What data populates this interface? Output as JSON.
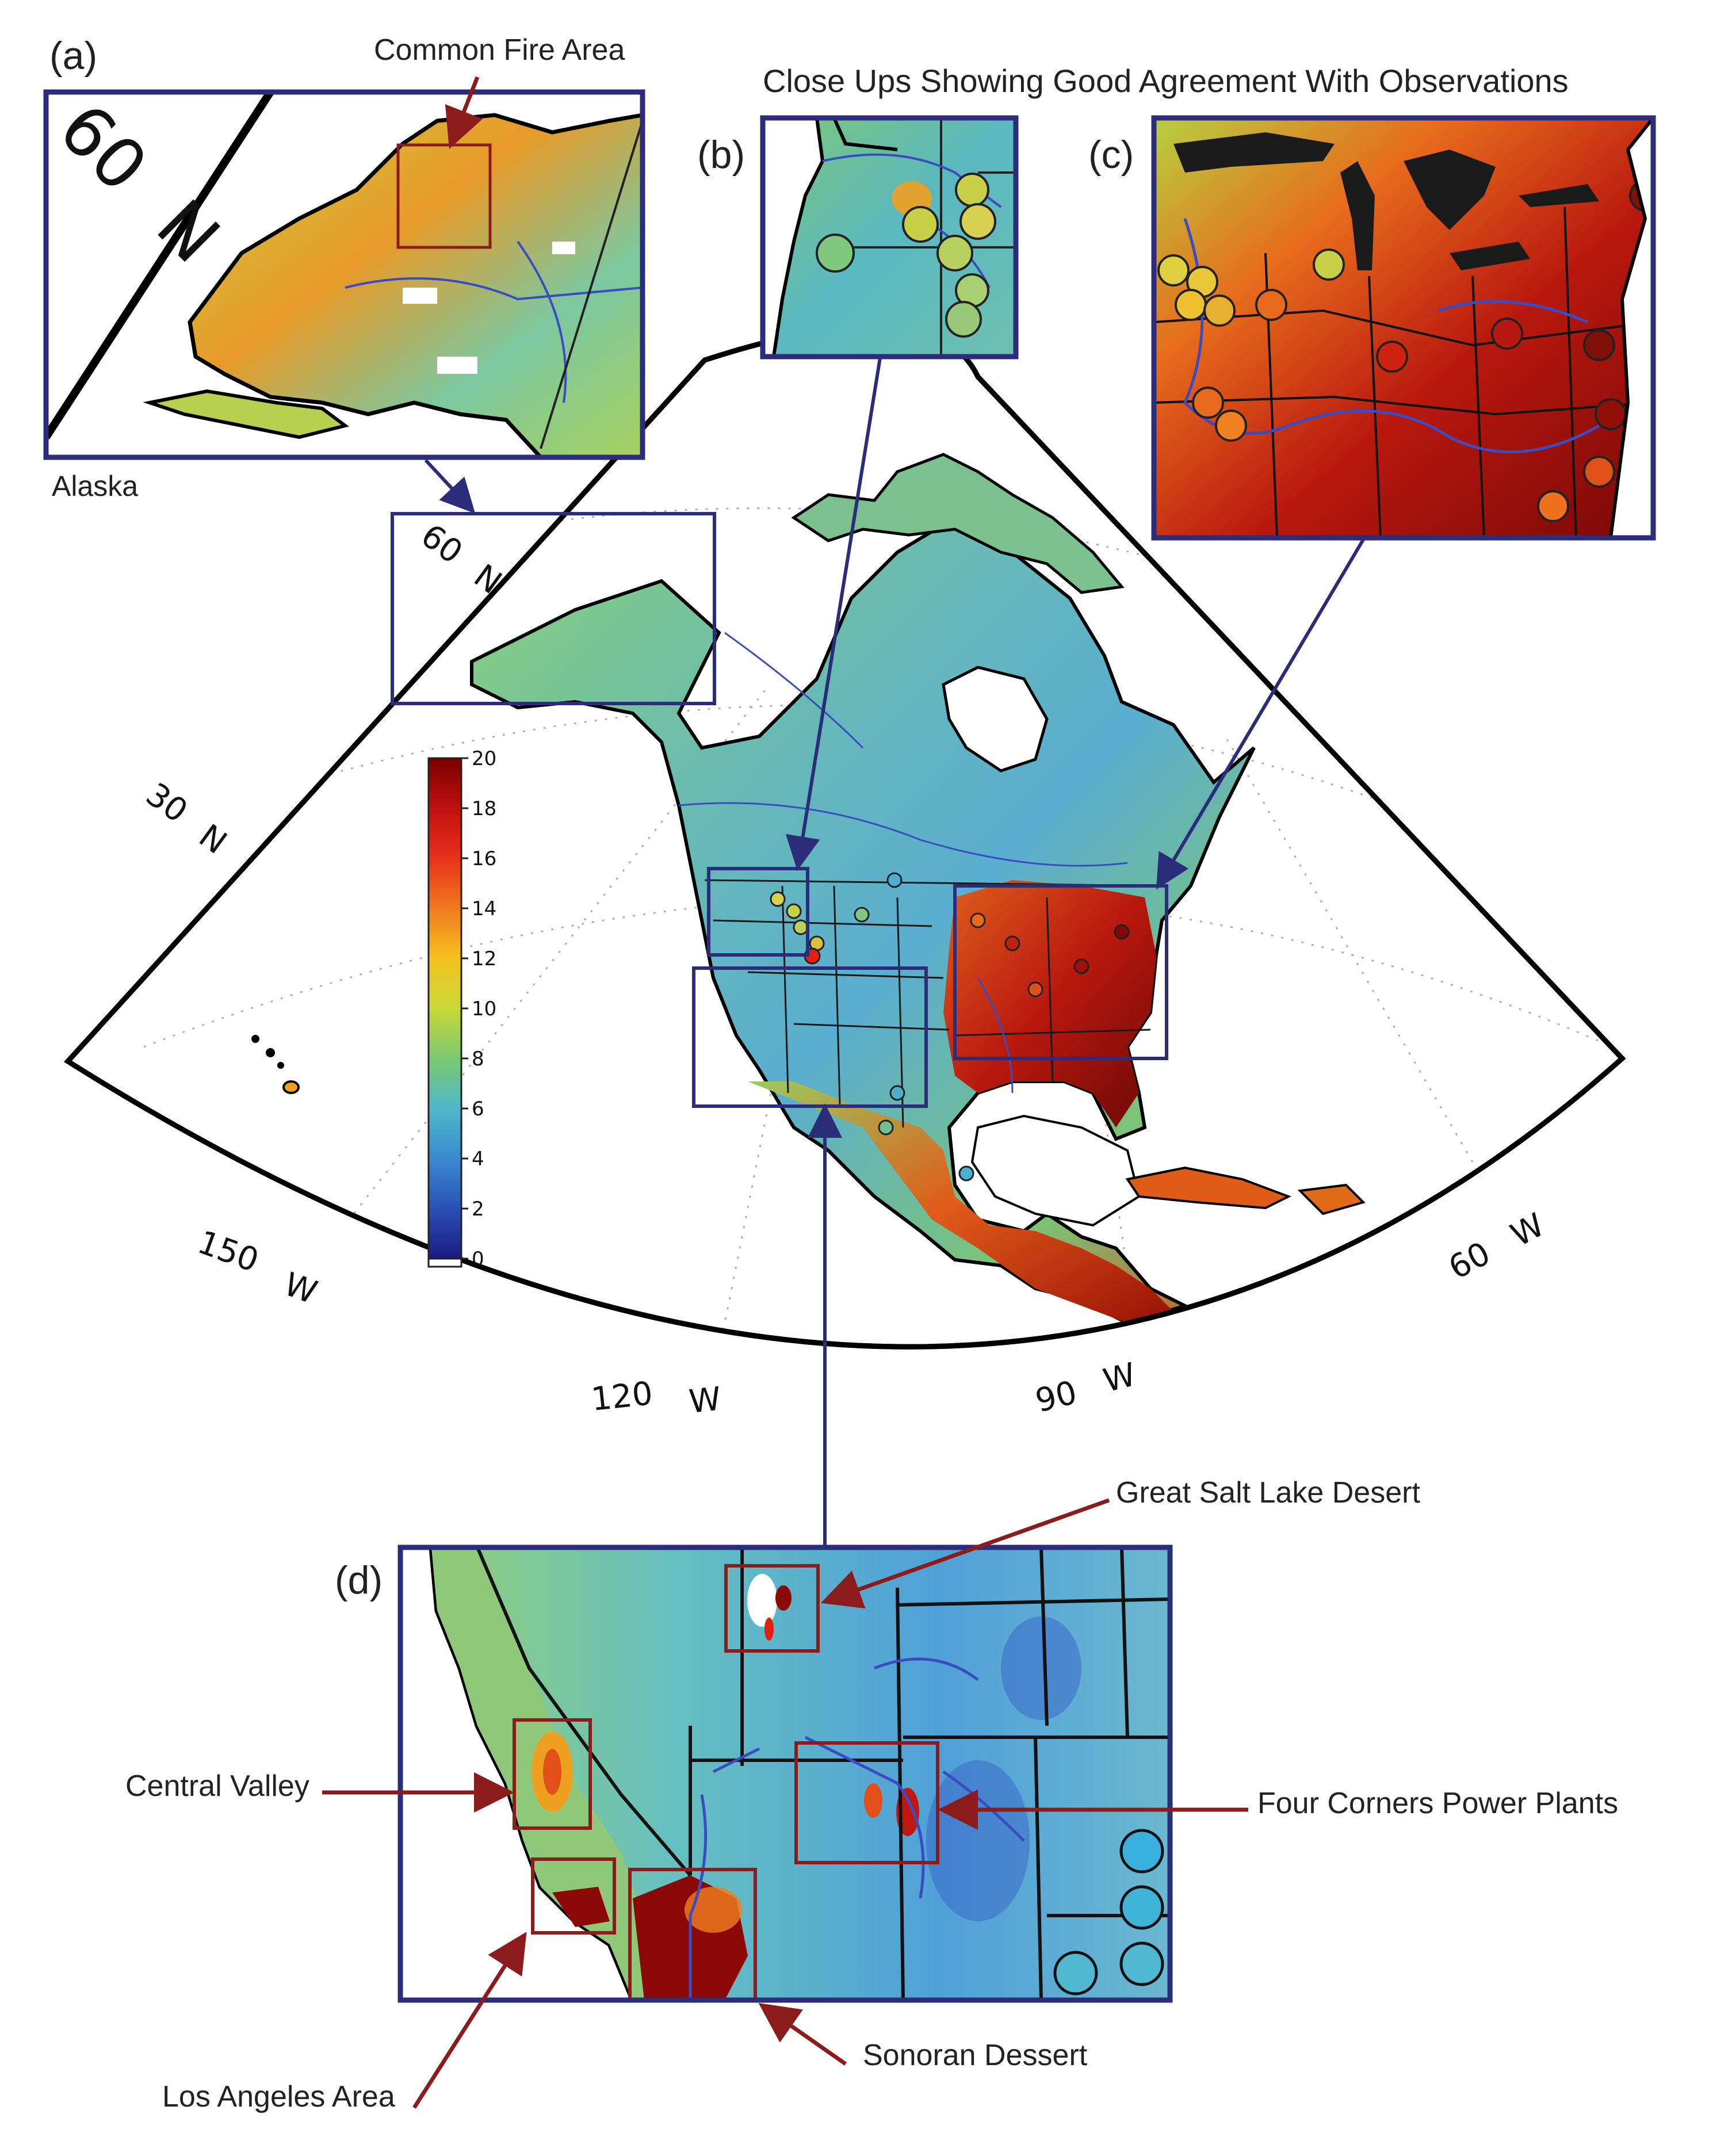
{
  "labels": {
    "panel_a": "(a)",
    "panel_b": "(b)",
    "panel_c": "(c)",
    "panel_d": "(d)",
    "common_fire_area": "Common Fire Area",
    "close_ups_title": "Close Ups Showing Good Agreement With Observations",
    "alaska": "Alaska",
    "great_salt_lake_desert": "Great Salt Lake Desert",
    "central_valley": "Central Valley",
    "four_corners": "Four Corners Power Plants",
    "los_angeles": "Los Angeles Area",
    "sonoran": "Sonoran Dessert"
  },
  "grid_labels": {
    "lat60": "60",
    "lat60_n": "N",
    "lat30": "30",
    "lat30_n": "N",
    "lon150": "150",
    "lon120": "120",
    "lon90": "90",
    "lon60": "60",
    "w": "W"
  },
  "colorbar": {
    "ticks": [
      "20",
      "18",
      "16",
      "14",
      "12",
      "10",
      "8",
      "6",
      "4",
      "2",
      "0"
    ],
    "colors": [
      "#7a0000",
      "#c01010",
      "#e8301c",
      "#f07a1e",
      "#f5c21e",
      "#c8d838",
      "#7cc870",
      "#4fb8c8",
      "#3a8ad0",
      "#2a50b8",
      "#1a1a80"
    ]
  },
  "colors": {
    "frame": "#2b2d7a",
    "callout": "#8c1c1c",
    "map_teal": "#6cbfa8",
    "map_red": "#b8180e",
    "map_dark": "#7a0a06"
  }
}
